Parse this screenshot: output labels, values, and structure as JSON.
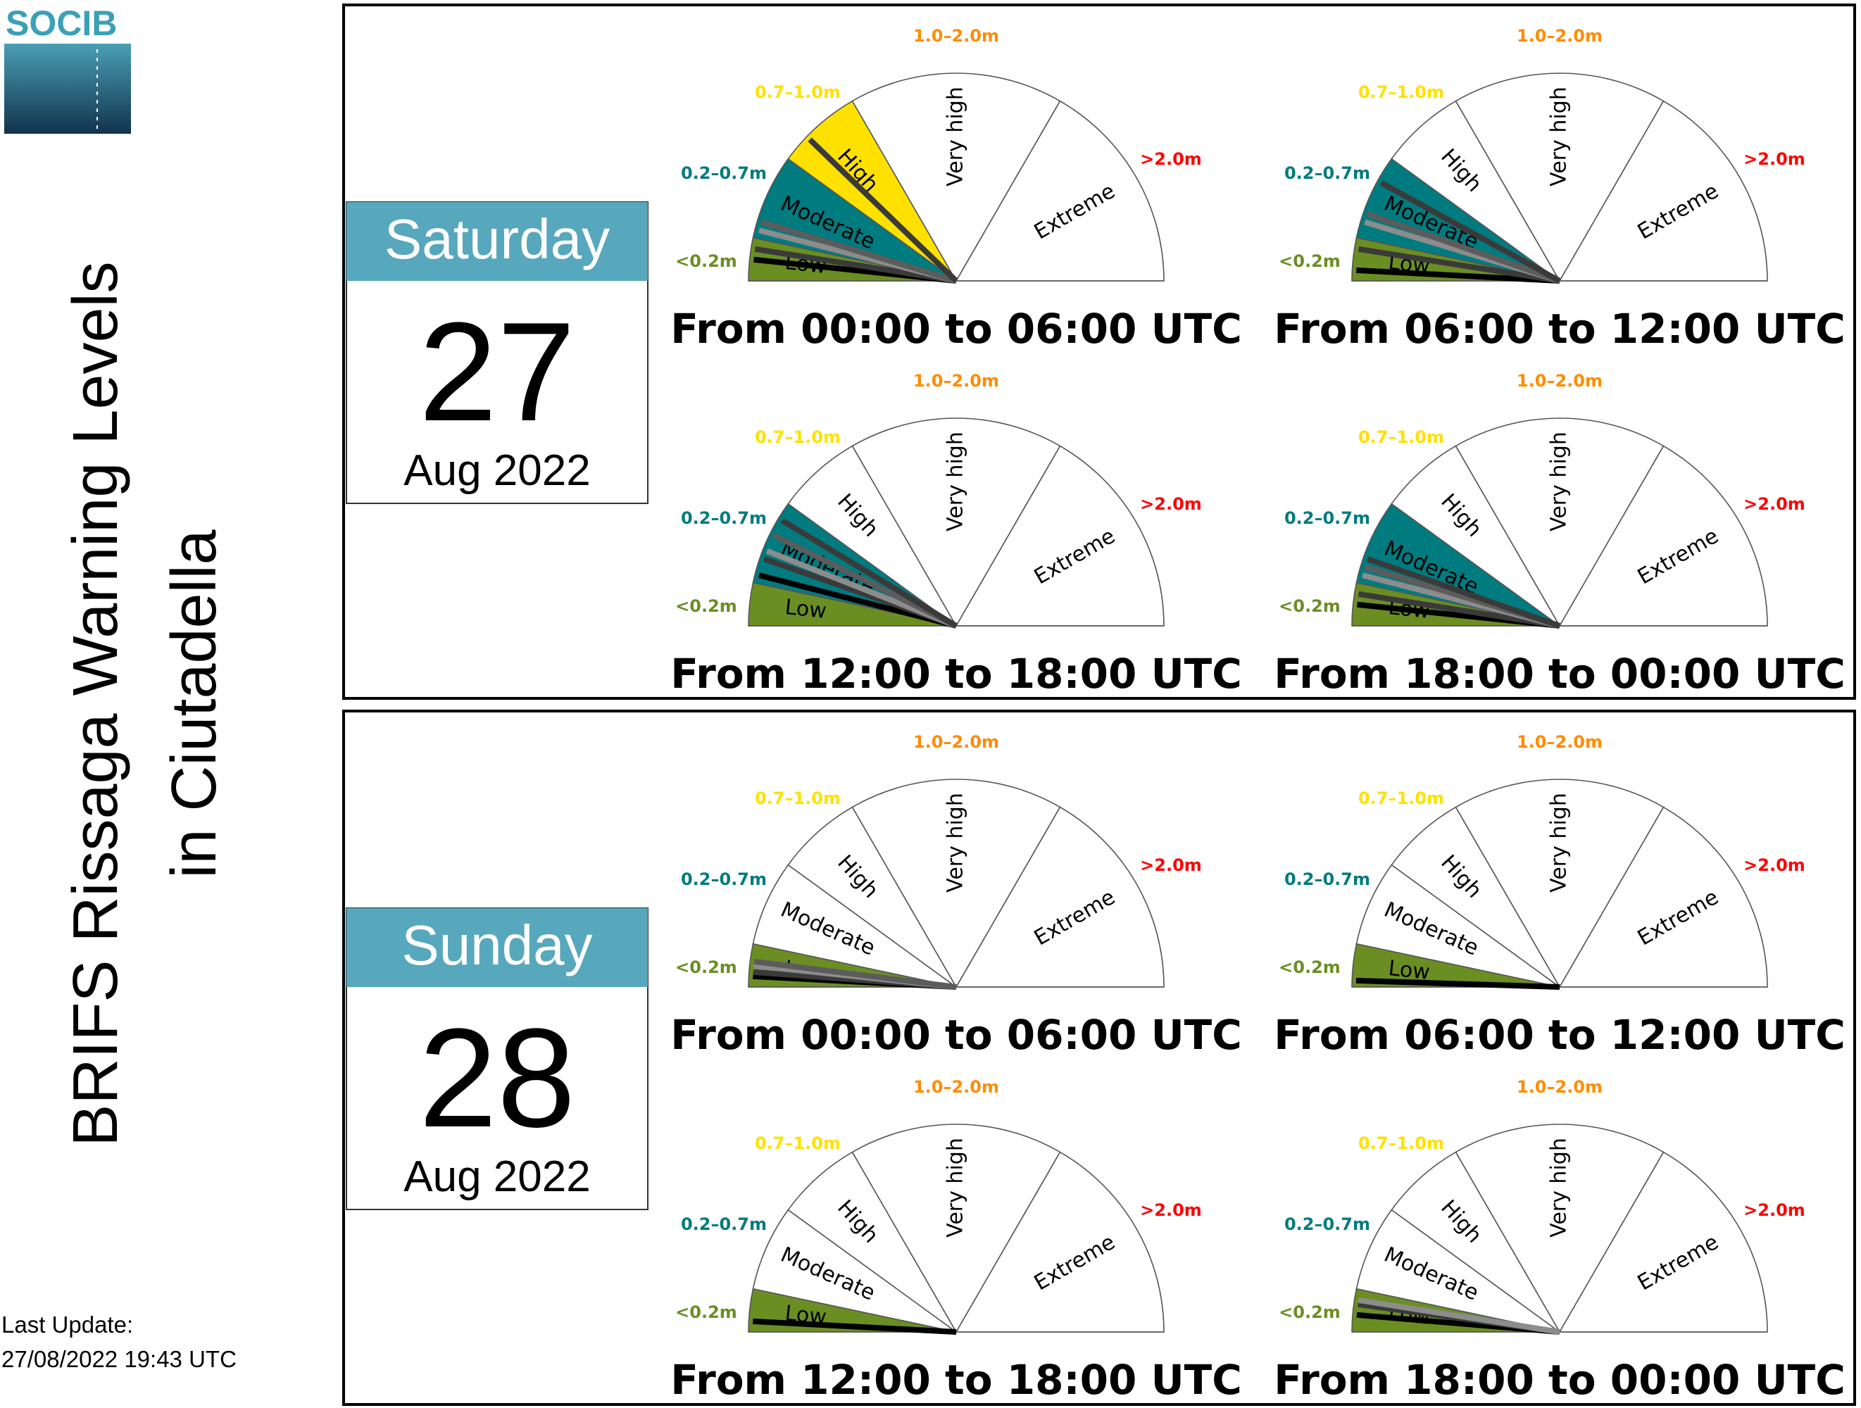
{
  "logo": {
    "text": "SOCIB"
  },
  "page_title": {
    "line1": "BRIFS Rissaga Warning Levels",
    "line2": "in Ciutadella"
  },
  "last_update": {
    "label": "Last Update:",
    "value": "27/08/2022 19:43 UTC"
  },
  "colors": {
    "low": "#6b8e23",
    "moderate": "#007b7f",
    "high": "#ffe100",
    "very_high": "#ff8c00",
    "extreme": "#ff0000",
    "day_header": "#57a7bd",
    "needle_black": "#000000",
    "needle_dark": "#3a3a3a",
    "needle_gray": "#8c8c8c",
    "needle_mid": "#5c5c5c"
  },
  "gauge_labels": {
    "levels": [
      "Low",
      "Moderate",
      "High",
      "Very high",
      "Extreme"
    ],
    "ranges": [
      "<0.2m",
      "0.2–0.7m",
      "0.7–1.0m",
      "1.0–2.0m",
      ">2.0m"
    ]
  },
  "chart_data": [
    {
      "day": "Saturday",
      "date": "27",
      "month_year": "Aug 2022",
      "panels": [
        {
          "title": "From 00:00 to 06:00 UTC",
          "type": "gauge",
          "filled_level": "High",
          "forecast_heights_m": [
            0.1,
            0.15,
            0.25,
            0.3,
            0.8
          ]
        },
        {
          "title": "From 06:00 to 12:00 UTC",
          "type": "gauge",
          "filled_level": "Moderate",
          "forecast_heights_m": [
            0.05,
            0.15,
            0.3,
            0.35,
            0.55
          ]
        },
        {
          "title": "From 12:00 to 18:00 UTC",
          "type": "gauge",
          "filled_level": "Moderate",
          "forecast_heights_m": [
            0.25,
            0.35,
            0.4,
            0.5,
            0.6
          ]
        },
        {
          "title": "From 18:00 to 00:00 UTC",
          "type": "gauge",
          "filled_level": "Moderate",
          "forecast_heights_m": [
            0.1,
            0.15,
            0.25,
            0.3,
            0.35
          ]
        }
      ]
    },
    {
      "day": "Sunday",
      "date": "28",
      "month_year": "Aug 2022",
      "panels": [
        {
          "title": "From 00:00 to 06:00 UTC",
          "type": "gauge",
          "filled_level": "Low",
          "forecast_heights_m": [
            0.05,
            0.07,
            0.1,
            0.12
          ]
        },
        {
          "title": "From 06:00 to 12:00 UTC",
          "type": "gauge",
          "filled_level": "Low",
          "forecast_heights_m": [
            0.03
          ]
        },
        {
          "title": "From 12:00 to 18:00 UTC",
          "type": "gauge",
          "filled_level": "Low",
          "forecast_heights_m": [
            0.05
          ]
        },
        {
          "title": "From 18:00 to 00:00 UTC",
          "type": "gauge",
          "filled_level": "Low",
          "forecast_heights_m": [
            0.08,
            0.13,
            0.15
          ]
        }
      ]
    }
  ]
}
